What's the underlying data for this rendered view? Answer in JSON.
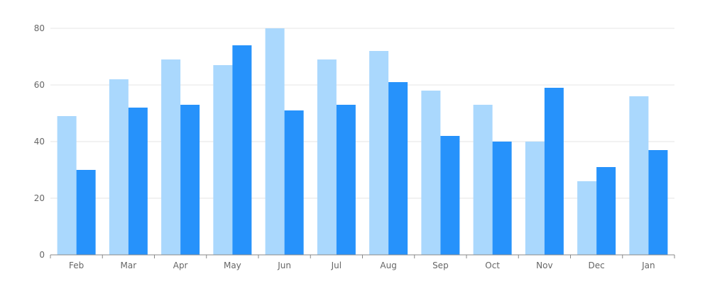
{
  "chart_data": {
    "type": "bar",
    "title": "",
    "xlabel": "",
    "ylabel": "",
    "categories": [
      "Feb",
      "Mar",
      "Apr",
      "May",
      "Jun",
      "Jul",
      "Aug",
      "Sep",
      "Oct",
      "Nov",
      "Dec",
      "Jan"
    ],
    "series": [
      {
        "color": "#aad8fd",
        "values": [
          49,
          62,
          69,
          67,
          80,
          69,
          72,
          58,
          53,
          40,
          26,
          56
        ]
      },
      {
        "color": "#2692fb",
        "values": [
          30,
          52,
          53,
          74,
          51,
          53,
          61,
          42,
          40,
          59,
          31,
          37
        ]
      }
    ],
    "ylim": [
      0,
      80
    ],
    "yticks": [
      0,
      20,
      40,
      60,
      80
    ],
    "grid": true,
    "legend": "none"
  }
}
